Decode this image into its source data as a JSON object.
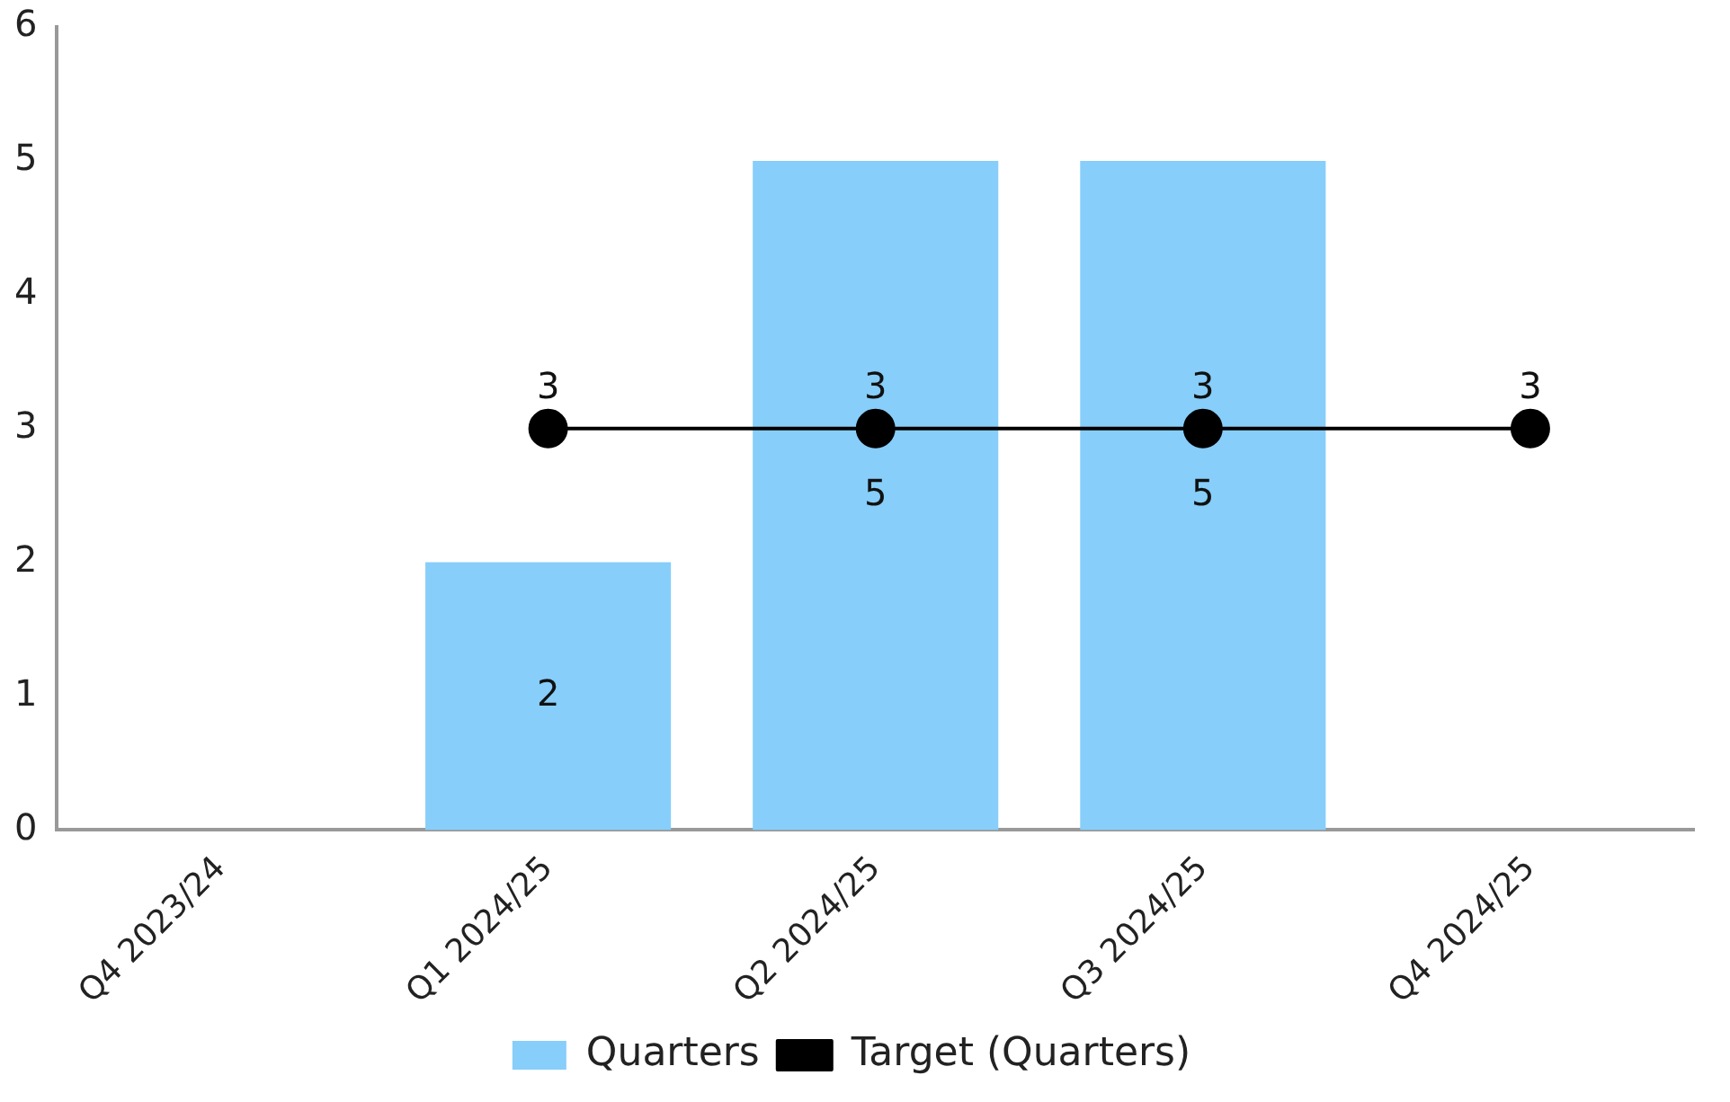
{
  "chart_data": {
    "type": "bar",
    "categories": [
      "Q4 2023/24",
      "Q1 2024/25",
      "Q2 2024/25",
      "Q3 2024/25",
      "Q4 2024/25"
    ],
    "series": [
      {
        "name": "Quarters",
        "color": "#87cefa",
        "values": [
          null,
          2,
          5,
          5,
          null
        ]
      },
      {
        "name": "Target (Quarters)",
        "type": "line",
        "color": "#000000",
        "values": [
          null,
          3,
          3,
          3,
          3
        ]
      }
    ],
    "ylim": [
      0,
      6
    ],
    "yticks": [
      0,
      1,
      2,
      3,
      4,
      5,
      6
    ],
    "grid": false,
    "legend": "bottom",
    "marker": "circle",
    "line_style": "solid",
    "data_labels": true
  }
}
